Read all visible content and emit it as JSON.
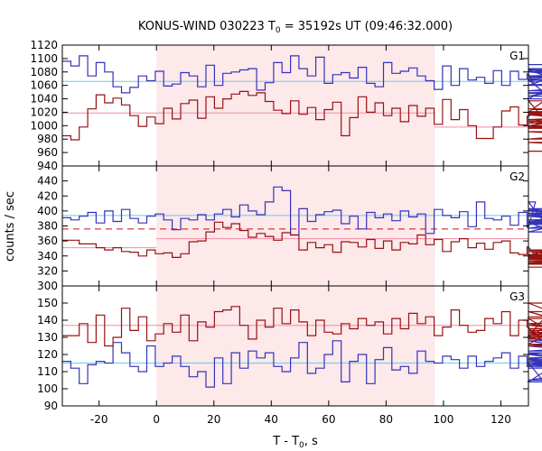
{
  "chart_data": {
    "type": "line",
    "title": {
      "main": "KONUS-WIND 030223 T",
      "sub": "0",
      "rest": " = 35192s UT (09:46:32.000)"
    },
    "xlabel": {
      "main": "T - T",
      "sub": "0",
      "rest": ", s"
    },
    "ylabel": "counts / sec",
    "xlim": [
      -32.8,
      129.6
    ],
    "xticks": [
      -20,
      0,
      20,
      40,
      60,
      80,
      100,
      120
    ],
    "xtick_labels": [
      "-20",
      "0",
      "20",
      "40",
      "60",
      "80",
      "100",
      "120"
    ],
    "shaded_interval": [
      0,
      97
    ],
    "shade_color": "#fde8ea",
    "bin_width": 2.944,
    "bin_start": -32.8,
    "colors": {
      "blue": "#3333bb",
      "red": "#991111",
      "lightblue": "#66ccee",
      "pink": "#f08aa8",
      "dashed": "#cc1111"
    },
    "panels": [
      {
        "name": "G1",
        "ylim": [
          940,
          1120
        ],
        "yticks": [
          940,
          960,
          980,
          1000,
          1020,
          1040,
          1060,
          1080,
          1100,
          1120
        ],
        "ytick_labels": [
          "940",
          "960",
          "980",
          "1000",
          "1020",
          "1040",
          "1060",
          "1080",
          "1100",
          "1120"
        ],
        "blue": [
          1096,
          1089,
          1104,
          1074,
          1094,
          1080,
          1058,
          1049,
          1057,
          1074,
          1067,
          1081,
          1059,
          1062,
          1079,
          1074,
          1058,
          1090,
          1060,
          1078,
          1080,
          1083,
          1085,
          1053,
          1064,
          1094,
          1079,
          1104,
          1085,
          1074,
          1102,
          1063,
          1076,
          1079,
          1071,
          1087,
          1063,
          1058,
          1094,
          1078,
          1081,
          1086,
          1074,
          1067,
          1054,
          1089,
          1060,
          1085,
          1068,
          1072,
          1063,
          1082,
          1060,
          1081,
          1069,
          1077,
          1060,
          1068,
          1040,
          1066,
          1085,
          1072,
          1083,
          1049,
          1052,
          1060,
          1072,
          1081,
          1060,
          1070,
          1044,
          1074,
          1080,
          1061,
          1048,
          1072,
          1091
        ],
        "blue_mean": 1066,
        "red": [
          985,
          979,
          998,
          1025,
          1046,
          1034,
          1041,
          1031,
          1015,
          999,
          1013,
          1003,
          1026,
          1010,
          1033,
          1038,
          1011,
          1043,
          1026,
          1040,
          1047,
          1051,
          1045,
          1049,
          1036,
          1023,
          1018,
          1037,
          1017,
          1027,
          1009,
          1024,
          1035,
          985,
          1012,
          1043,
          1020,
          1034,
          1015,
          1026,
          1006,
          1030,
          1014,
          1026,
          1002,
          1039,
          1009,
          1024,
          1000,
          981,
          981,
          998,
          1022,
          1028,
          1001,
          1014,
          1020,
          1037,
          996,
          1021,
          1004,
          1025,
          1020,
          1000,
          1016,
          1007,
          996,
          1019,
          1016,
          1009,
          1018,
          998,
          991,
          980,
          1000,
          975,
          962
        ],
        "red_mean": 1019,
        "red_mean_after": 998
      },
      {
        "name": "G2",
        "ylim": [
          300,
          460
        ],
        "yticks": [
          300,
          320,
          340,
          360,
          380,
          400,
          420,
          440
        ],
        "ytick_labels": [
          "300",
          "320",
          "340",
          "360",
          "380",
          "400",
          "420",
          "440"
        ],
        "blue": [
          391,
          388,
          393,
          398,
          384,
          400,
          386,
          402,
          390,
          384,
          393,
          396,
          388,
          375,
          390,
          388,
          395,
          388,
          396,
          402,
          392,
          408,
          400,
          395,
          412,
          432,
          427,
          368,
          403,
          386,
          395,
          399,
          401,
          383,
          393,
          376,
          398,
          391,
          396,
          387,
          400,
          392,
          396,
          370,
          402,
          394,
          391,
          399,
          379,
          412,
          390,
          388,
          393,
          381,
          398,
          378,
          412,
          385,
          372,
          382,
          397,
          393,
          388,
          383,
          400,
          395,
          383,
          403,
          386,
          393,
          377,
          400,
          388,
          393,
          384,
          397,
          401
        ],
        "blue_mean": 394,
        "red": [
          361,
          361,
          356,
          356,
          351,
          348,
          351,
          346,
          345,
          340,
          348,
          343,
          344,
          338,
          343,
          359,
          360,
          372,
          385,
          378,
          383,
          374,
          365,
          370,
          366,
          361,
          371,
          368,
          348,
          358,
          351,
          355,
          345,
          359,
          358,
          352,
          362,
          350,
          360,
          348,
          358,
          356,
          368,
          355,
          362,
          346,
          359,
          363,
          351,
          357,
          349,
          358,
          360,
          344,
          342,
          352,
          340,
          341,
          348,
          346,
          339,
          342,
          336,
          336,
          336,
          340,
          333,
          330,
          337,
          338,
          330,
          335,
          331,
          331,
          329,
          333,
          325
        ],
        "red_mean_segments": [
          [
            -32.8,
            0,
            351
          ],
          [
            0,
            129.6,
            363
          ]
        ],
        "dashed_level": 376
      },
      {
        "name": "G3",
        "ylim": [
          90,
          160
        ],
        "yticks": [
          90,
          100,
          110,
          120,
          130,
          140,
          150
        ],
        "ytick_labels": [
          "90",
          "100",
          "110",
          "120",
          "130",
          "140",
          "150"
        ],
        "blue": [
          116,
          112,
          103,
          114,
          116,
          115,
          127,
          121,
          113,
          110,
          125,
          113,
          115,
          119,
          113,
          107,
          110,
          101,
          118,
          103,
          121,
          112,
          122,
          118,
          121,
          113,
          110,
          118,
          127,
          109,
          112,
          120,
          128,
          104,
          116,
          120,
          103,
          117,
          124,
          111,
          113,
          109,
          122,
          116,
          115,
          119,
          117,
          112,
          119,
          113,
          116,
          118,
          121,
          112,
          119,
          113,
          115,
          104,
          113,
          120,
          117,
          116,
          121,
          115,
          118,
          105,
          113,
          117,
          125,
          118,
          120,
          130,
          112,
          114,
          122,
          128,
          112
        ],
        "blue_mean": 115,
        "red": [
          131,
          131,
          138,
          127,
          143,
          125,
          130,
          147,
          134,
          142,
          128,
          132,
          138,
          133,
          143,
          128,
          139,
          136,
          145,
          146,
          148,
          137,
          129,
          140,
          136,
          147,
          138,
          146,
          139,
          131,
          140,
          133,
          132,
          138,
          135,
          141,
          137,
          139,
          132,
          141,
          135,
          144,
          138,
          142,
          131,
          136,
          146,
          137,
          133,
          134,
          141,
          138,
          145,
          131,
          140,
          136,
          131,
          141,
          133,
          130,
          145,
          137,
          134,
          126,
          150,
          131,
          138,
          129,
          145,
          125,
          131,
          132,
          137,
          130,
          135,
          138,
          142
        ],
        "red_mean": 137
      }
    ]
  }
}
